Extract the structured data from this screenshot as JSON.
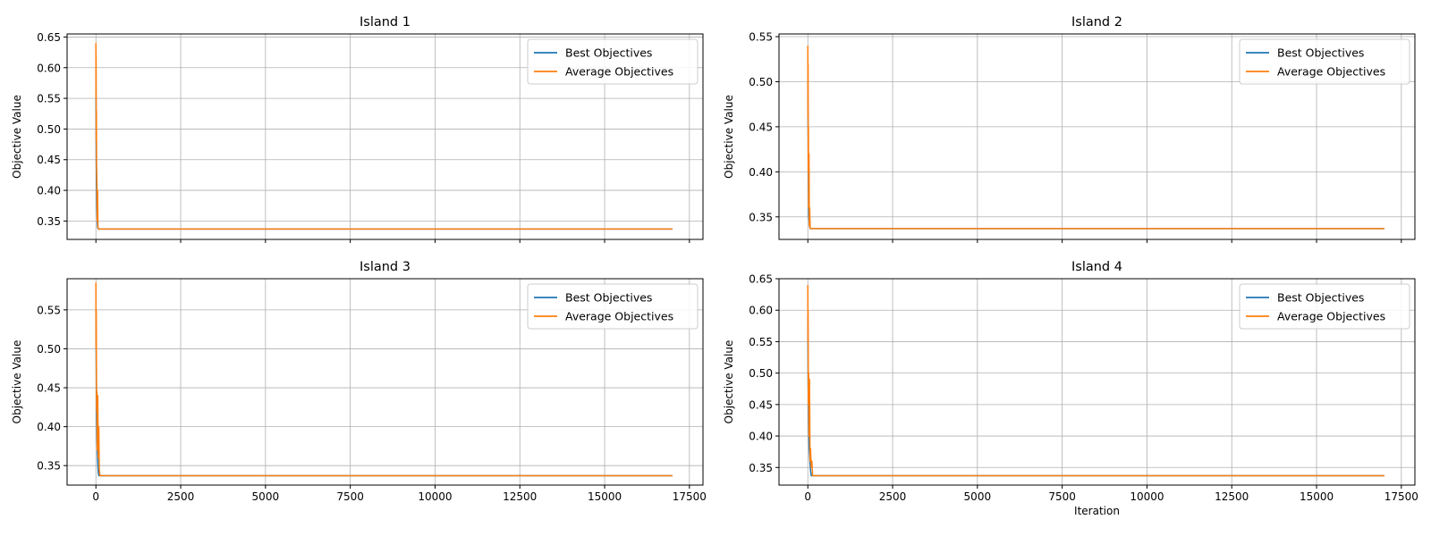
{
  "colors": {
    "best": "#1f77b4",
    "average": "#ff7f0e",
    "grid": "#b0b0b0",
    "axis": "#000000"
  },
  "chart_data": [
    {
      "type": "line",
      "title": "Island 1",
      "xlabel": "",
      "ylabel": "Objective Value",
      "xlim": [
        -850,
        17900
      ],
      "ylim": [
        0.32,
        0.655
      ],
      "xticks": [
        0,
        2500,
        5000,
        7500,
        10000,
        12500,
        15000,
        17500
      ],
      "xtick_labels_shown": false,
      "yticks": [
        0.35,
        0.4,
        0.45,
        0.5,
        0.55,
        0.6,
        0.65
      ],
      "ytick_labels": [
        "0.35",
        "0.40",
        "0.45",
        "0.50",
        "0.55",
        "0.60",
        "0.65"
      ],
      "grid": true,
      "legend": "top-right",
      "series": [
        {
          "name": "Best Objectives",
          "color": "#1f77b4",
          "x": [
            0,
            5,
            10,
            20,
            30,
            40,
            50,
            70,
            17000
          ],
          "y": [
            0.6,
            0.52,
            0.45,
            0.4,
            0.37,
            0.35,
            0.34,
            0.337,
            0.337
          ]
        },
        {
          "name": "Average Objectives",
          "color": "#ff7f0e",
          "x": [
            0,
            3,
            6,
            10,
            15,
            20,
            30,
            40,
            50,
            60,
            80,
            17000
          ],
          "y": [
            0.64,
            0.55,
            0.62,
            0.48,
            0.53,
            0.44,
            0.41,
            0.35,
            0.4,
            0.34,
            0.337,
            0.337
          ]
        }
      ]
    },
    {
      "type": "line",
      "title": "Island 2",
      "xlabel": "",
      "ylabel": "Objective Value",
      "xlim": [
        -850,
        17900
      ],
      "ylim": [
        0.325,
        0.553
      ],
      "xticks": [
        0,
        2500,
        5000,
        7500,
        10000,
        12500,
        15000,
        17500
      ],
      "xtick_labels_shown": false,
      "yticks": [
        0.35,
        0.4,
        0.45,
        0.5,
        0.55
      ],
      "ytick_labels": [
        "0.35",
        "0.40",
        "0.45",
        "0.50",
        "0.55"
      ],
      "grid": true,
      "legend": "top-right",
      "series": [
        {
          "name": "Best Objectives",
          "color": "#1f77b4",
          "x": [
            0,
            10,
            20,
            30,
            50,
            70,
            17000
          ],
          "y": [
            0.5,
            0.44,
            0.38,
            0.35,
            0.34,
            0.337,
            0.337
          ]
        },
        {
          "name": "Average Objectives",
          "color": "#ff7f0e",
          "x": [
            0,
            4,
            8,
            12,
            18,
            25,
            35,
            45,
            55,
            70,
            17000
          ],
          "y": [
            0.54,
            0.46,
            0.52,
            0.4,
            0.45,
            0.36,
            0.42,
            0.34,
            0.36,
            0.337,
            0.337
          ]
        }
      ]
    },
    {
      "type": "line",
      "title": "Island 3",
      "xlabel": "",
      "ylabel": "Objective Value",
      "xlim": [
        -850,
        17900
      ],
      "ylim": [
        0.325,
        0.59
      ],
      "xticks": [
        0,
        2500,
        5000,
        7500,
        10000,
        12500,
        15000,
        17500
      ],
      "xtick_labels": [
        "0",
        "2500",
        "5000",
        "7500",
        "10000",
        "12500",
        "15000",
        "17500"
      ],
      "xtick_labels_shown": true,
      "yticks": [
        0.35,
        0.4,
        0.45,
        0.5,
        0.55
      ],
      "ytick_labels": [
        "0.35",
        "0.40",
        "0.45",
        "0.50",
        "0.55"
      ],
      "grid": true,
      "legend": "top-right",
      "series": [
        {
          "name": "Best Objectives",
          "color": "#1f77b4",
          "x": [
            0,
            10,
            20,
            35,
            50,
            70,
            90,
            17000
          ],
          "y": [
            0.55,
            0.48,
            0.42,
            0.38,
            0.36,
            0.34,
            0.337,
            0.337
          ]
        },
        {
          "name": "Average Objectives",
          "color": "#ff7f0e",
          "x": [
            0,
            5,
            10,
            20,
            30,
            40,
            55,
            70,
            85,
            100,
            120,
            17000
          ],
          "y": [
            0.585,
            0.5,
            0.55,
            0.42,
            0.445,
            0.37,
            0.44,
            0.36,
            0.4,
            0.345,
            0.337,
            0.337
          ]
        }
      ]
    },
    {
      "type": "line",
      "title": "Island 4",
      "xlabel": "Iteration",
      "ylabel": "Objective Value",
      "xlim": [
        -850,
        17900
      ],
      "ylim": [
        0.322,
        0.65
      ],
      "xticks": [
        0,
        2500,
        5000,
        7500,
        10000,
        12500,
        15000,
        17500
      ],
      "xtick_labels": [
        "0",
        "2500",
        "5000",
        "7500",
        "10000",
        "12500",
        "15000",
        "17500"
      ],
      "xtick_labels_shown": true,
      "yticks": [
        0.35,
        0.4,
        0.45,
        0.5,
        0.55,
        0.6,
        0.65
      ],
      "ytick_labels": [
        "0.35",
        "0.40",
        "0.45",
        "0.50",
        "0.55",
        "0.60",
        "0.65"
      ],
      "grid": true,
      "legend": "top-right",
      "series": [
        {
          "name": "Best Objectives",
          "color": "#1f77b4",
          "x": [
            0,
            10,
            25,
            40,
            60,
            80,
            100,
            17000
          ],
          "y": [
            0.59,
            0.48,
            0.42,
            0.38,
            0.36,
            0.345,
            0.337,
            0.337
          ]
        },
        {
          "name": "Average Objectives",
          "color": "#ff7f0e",
          "x": [
            0,
            4,
            8,
            15,
            25,
            35,
            50,
            65,
            80,
            100,
            120,
            140,
            17000
          ],
          "y": [
            0.64,
            0.55,
            0.6,
            0.45,
            0.5,
            0.4,
            0.49,
            0.36,
            0.38,
            0.35,
            0.36,
            0.337,
            0.337
          ]
        }
      ]
    }
  ]
}
